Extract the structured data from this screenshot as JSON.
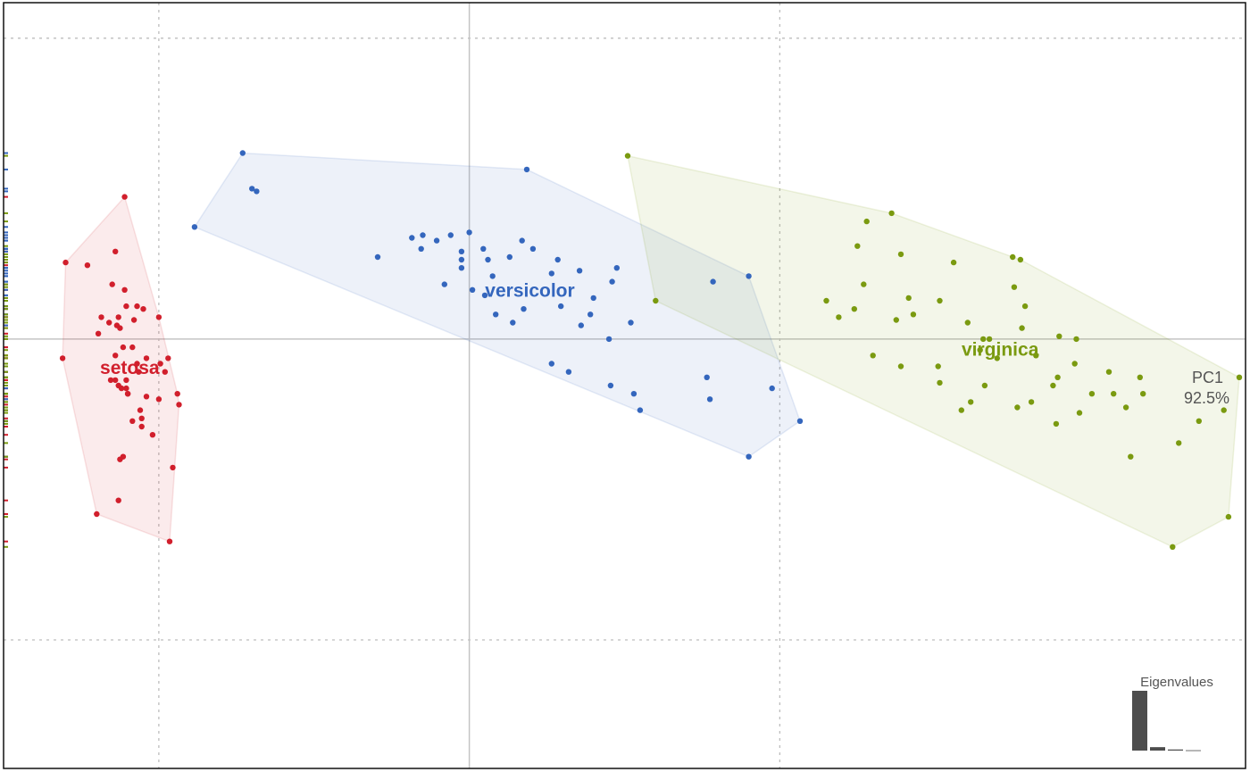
{
  "chart_data": {
    "type": "scatter",
    "title": "",
    "xlabel": "PC1",
    "xlabel_variance": "92.5%",
    "ylabel": "",
    "xlim": [
      -3,
      5
    ],
    "ylim": [
      -1.57,
      1.23
    ],
    "grid": true,
    "grid_x": [
      -2,
      2
    ],
    "grid_y": [
      -1.1,
      1.1
    ],
    "series": [
      {
        "name": "setosa",
        "color": "#d11f2c",
        "points": [
          [
            -2.22,
            0.52
          ],
          [
            -2.6,
            0.28
          ],
          [
            -2.62,
            -0.07
          ],
          [
            -1.93,
            -0.74
          ],
          [
            -2.4,
            -0.64
          ],
          [
            -2.46,
            0.27
          ],
          [
            -2.28,
            0.32
          ],
          [
            -2.3,
            0.2
          ],
          [
            -2.22,
            0.18
          ],
          [
            -2.26,
            0.08
          ],
          [
            -2.39,
            0.02
          ],
          [
            -2.1,
            0.11
          ],
          [
            -2.14,
            0.12
          ],
          [
            -2.16,
            0.07
          ],
          [
            -2.21,
            0.12
          ],
          [
            -2.0,
            0.08
          ],
          [
            -2.37,
            0.08
          ],
          [
            -2.27,
            0.05
          ],
          [
            -2.32,
            0.06
          ],
          [
            -2.25,
            0.04
          ],
          [
            -2.23,
            -0.03
          ],
          [
            -2.17,
            -0.03
          ],
          [
            -2.28,
            -0.06
          ],
          [
            -2.14,
            -0.09
          ],
          [
            -2.08,
            -0.07
          ],
          [
            -2.13,
            -0.12
          ],
          [
            -2.21,
            -0.15
          ],
          [
            -1.99,
            -0.09
          ],
          [
            -1.94,
            -0.07
          ],
          [
            -1.96,
            -0.12
          ],
          [
            -2.31,
            -0.15
          ],
          [
            -2.28,
            -0.15
          ],
          [
            -2.21,
            -0.18
          ],
          [
            -2.2,
            -0.2
          ],
          [
            -2.24,
            -0.18
          ],
          [
            -2.26,
            -0.17
          ],
          [
            -2.2,
            -0.2
          ],
          [
            -2.08,
            -0.21
          ],
          [
            -2.0,
            -0.22
          ],
          [
            -1.88,
            -0.2
          ],
          [
            -2.12,
            -0.26
          ],
          [
            -2.11,
            -0.29
          ],
          [
            -2.17,
            -0.3
          ],
          [
            -2.11,
            -0.32
          ],
          [
            -1.87,
            -0.24
          ],
          [
            -2.04,
            -0.35
          ],
          [
            -1.91,
            -0.47
          ],
          [
            -2.23,
            -0.43
          ],
          [
            -2.25,
            -0.44
          ],
          [
            -2.26,
            -0.59
          ]
        ]
      },
      {
        "name": "versicolor",
        "color": "#3466bd",
        "points": [
          [
            -1.77,
            0.41
          ],
          [
            -1.46,
            0.68
          ],
          [
            -1.37,
            0.54
          ],
          [
            -1.4,
            0.55
          ],
          [
            0.37,
            0.62
          ],
          [
            0.0,
            0.39
          ],
          [
            -0.12,
            0.38
          ],
          [
            -0.37,
            0.37
          ],
          [
            -0.3,
            0.38
          ],
          [
            0.34,
            0.36
          ],
          [
            -0.21,
            0.36
          ],
          [
            0.09,
            0.33
          ],
          [
            -0.59,
            0.3
          ],
          [
            1.8,
            0.23
          ],
          [
            -0.31,
            0.33
          ],
          [
            0.53,
            0.24
          ],
          [
            0.92,
            0.21
          ],
          [
            0.57,
            0.29
          ],
          [
            0.71,
            0.25
          ],
          [
            0.8,
            0.15
          ],
          [
            -0.05,
            0.32
          ],
          [
            -0.05,
            0.26
          ],
          [
            0.15,
            0.23
          ],
          [
            1.57,
            0.21
          ],
          [
            0.95,
            0.26
          ],
          [
            0.41,
            0.33
          ],
          [
            0.17,
            0.09
          ],
          [
            0.59,
            0.12
          ],
          [
            0.78,
            0.09
          ],
          [
            0.35,
            0.11
          ],
          [
            0.1,
            0.16
          ],
          [
            -0.16,
            0.2
          ],
          [
            0.26,
            0.3
          ],
          [
            0.12,
            0.29
          ],
          [
            0.72,
            0.05
          ],
          [
            0.02,
            0.18
          ],
          [
            -0.05,
            0.29
          ],
          [
            0.28,
            0.06
          ],
          [
            1.04,
            0.06
          ],
          [
            0.9,
            0.0
          ],
          [
            0.64,
            -0.12
          ],
          [
            0.53,
            -0.09
          ],
          [
            1.53,
            -0.14
          ],
          [
            1.55,
            -0.22
          ],
          [
            0.91,
            -0.17
          ],
          [
            1.06,
            -0.2
          ],
          [
            1.95,
            -0.18
          ],
          [
            1.1,
            -0.26
          ],
          [
            2.13,
            -0.3
          ],
          [
            1.8,
            -0.43
          ]
        ]
      },
      {
        "name": "virginica",
        "color": "#7a9a10",
        "points": [
          [
            1.02,
            0.67
          ],
          [
            2.56,
            0.43
          ],
          [
            2.72,
            0.46
          ],
          [
            2.5,
            0.34
          ],
          [
            2.78,
            0.31
          ],
          [
            3.5,
            0.3
          ],
          [
            3.12,
            0.28
          ],
          [
            3.55,
            0.29
          ],
          [
            1.2,
            0.14
          ],
          [
            2.54,
            0.2
          ],
          [
            2.38,
            0.08
          ],
          [
            2.83,
            0.15
          ],
          [
            3.58,
            0.12
          ],
          [
            3.03,
            0.14
          ],
          [
            3.51,
            0.19
          ],
          [
            2.3,
            0.14
          ],
          [
            2.48,
            0.11
          ],
          [
            2.86,
            0.09
          ],
          [
            2.75,
            0.07
          ],
          [
            3.21,
            0.06
          ],
          [
            3.91,
            -0.0
          ],
          [
            3.8,
            0.01
          ],
          [
            2.6,
            -0.06
          ],
          [
            3.56,
            0.04
          ],
          [
            3.31,
            0.0
          ],
          [
            3.35,
            0.0
          ],
          [
            3.29,
            -0.04
          ],
          [
            3.65,
            -0.06
          ],
          [
            3.79,
            -0.14
          ],
          [
            3.02,
            -0.1
          ],
          [
            2.78,
            -0.1
          ],
          [
            4.32,
            -0.14
          ],
          [
            3.9,
            -0.09
          ],
          [
            3.4,
            -0.07
          ],
          [
            4.12,
            -0.12
          ],
          [
            4.96,
            -0.14
          ],
          [
            3.76,
            -0.17
          ],
          [
            4.34,
            -0.2
          ],
          [
            3.23,
            -0.23
          ],
          [
            4.01,
            -0.2
          ],
          [
            4.15,
            -0.2
          ],
          [
            4.23,
            -0.25
          ],
          [
            3.62,
            -0.23
          ],
          [
            3.32,
            -0.17
          ],
          [
            3.93,
            -0.27
          ],
          [
            4.7,
            -0.3
          ],
          [
            4.86,
            -0.26
          ],
          [
            3.78,
            -0.31
          ],
          [
            4.57,
            -0.38
          ],
          [
            4.89,
            -0.65
          ],
          [
            4.53,
            -0.76
          ],
          [
            3.53,
            -0.25
          ],
          [
            3.03,
            -0.16
          ],
          [
            3.17,
            -0.26
          ],
          [
            4.26,
            -0.43
          ]
        ]
      }
    ],
    "scree": {
      "title": "Eigenvalues",
      "values": [
        92.5,
        5.3,
        1.7,
        0.5
      ]
    }
  }
}
